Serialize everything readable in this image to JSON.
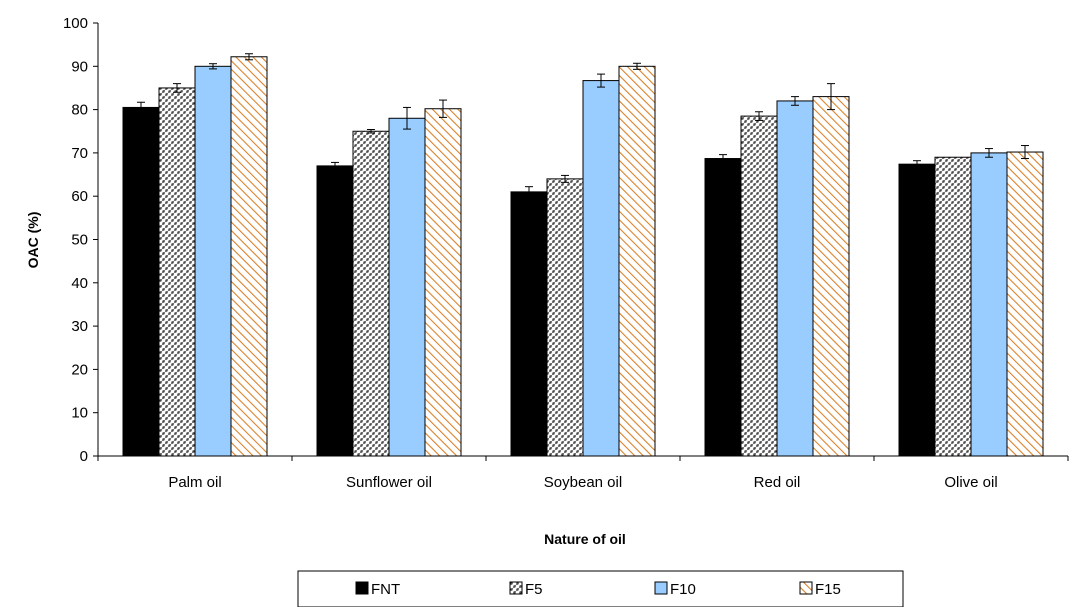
{
  "chart_data": {
    "type": "bar",
    "title": "",
    "xlabel": "Nature of oil",
    "ylabel": "OAC (%)",
    "ylim": [
      0,
      100
    ],
    "yticks": [
      0,
      10,
      20,
      30,
      40,
      50,
      60,
      70,
      80,
      90,
      100
    ],
    "grid": false,
    "legend_position": "bottom",
    "categories": [
      "Palm oil",
      "Sunflower oil",
      "Soybean oil",
      "Red oil",
      "Olive oil"
    ],
    "series": [
      {
        "name": "FNT",
        "values": [
          80.5,
          67.0,
          61.0,
          68.7,
          67.4
        ],
        "errors": [
          1.2,
          0.8,
          1.2,
          0.9,
          0.8
        ],
        "pattern": "solid",
        "color": "#000000"
      },
      {
        "name": "F5",
        "values": [
          85.0,
          75.0,
          64.0,
          78.5,
          69.0
        ],
        "errors": [
          1.0,
          0.4,
          0.8,
          1.0,
          0.0
        ],
        "pattern": "dots",
        "color": "#3a3a3a"
      },
      {
        "name": "F10",
        "values": [
          90.0,
          78.0,
          86.7,
          82.0,
          70.0
        ],
        "errors": [
          0.6,
          2.5,
          1.5,
          1.0,
          1.0
        ],
        "pattern": "solid",
        "color": "#99ccff"
      },
      {
        "name": "F15",
        "values": [
          92.2,
          80.2,
          90.0,
          83.0,
          70.2
        ],
        "errors": [
          0.7,
          2.0,
          0.7,
          3.0,
          1.5
        ],
        "pattern": "hatch",
        "color": "#d9822b"
      }
    ]
  }
}
